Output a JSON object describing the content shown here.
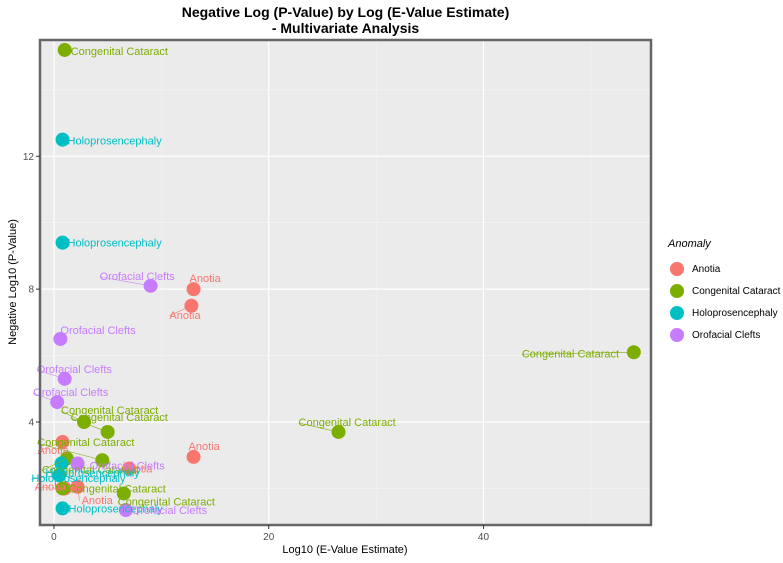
{
  "chart_data": {
    "type": "scatter",
    "title_lines": [
      "Negative Log (P-Value) by Log (E-Value Estimate)",
      "- Multivariate Analysis"
    ],
    "xlabel": "Log10 (E-Value Estimate)",
    "ylabel": "Negative Log10 (P-Value)",
    "xlim": [
      -1.3,
      55.6
    ],
    "ylim": [
      0.9,
      15.5
    ],
    "x_ticks": [
      0,
      20,
      40
    ],
    "y_ticks": [
      4,
      8,
      12
    ],
    "grid": true,
    "legend": {
      "title": "Anomaly",
      "position": "right",
      "entries": [
        "Anotia",
        "Congenital Cataract",
        "Holoprosencephaly",
        "Orofacial Clefts"
      ]
    },
    "series": [
      {
        "name": "Anotia",
        "color": "#F8766D",
        "points": [
          {
            "x": 13.0,
            "y": 8.0,
            "label": "Anotia"
          },
          {
            "x": 12.8,
            "y": 7.5,
            "label": "Anotia"
          },
          {
            "x": 0.8,
            "y": 3.4,
            "label": "Anotia"
          },
          {
            "x": 13.0,
            "y": 2.95,
            "label": "Anotia"
          },
          {
            "x": 7.0,
            "y": 2.6,
            "label": "Anotia"
          },
          {
            "x": 2.2,
            "y": 2.05,
            "label": "Anotia"
          },
          {
            "x": 1.0,
            "y": 2.0,
            "label": "Anotia"
          }
        ]
      },
      {
        "name": "Congenital Cataract",
        "color": "#7CAE00",
        "points": [
          {
            "x": 1.0,
            "y": 15.2,
            "label": "Congenital Cataract"
          },
          {
            "x": 54.0,
            "y": 6.1,
            "label": "Congenital Cataract"
          },
          {
            "x": 26.5,
            "y": 3.7,
            "label": "Congenital Cataract"
          },
          {
            "x": 2.8,
            "y": 4.0,
            "label": "Congenital Cataract"
          },
          {
            "x": 5.0,
            "y": 3.7,
            "label": "Congenital Cataract"
          },
          {
            "x": 1.2,
            "y": 2.9,
            "label": "Congenital Cataract"
          },
          {
            "x": 4.5,
            "y": 2.85,
            "label": "Congenital Cataract"
          },
          {
            "x": 6.5,
            "y": 1.85,
            "label": "Congenital Cataract"
          },
          {
            "x": 0.8,
            "y": 2.0,
            "label": "Congenital Cataract"
          }
        ]
      },
      {
        "name": "Holoprosencephaly",
        "color": "#00BFC4",
        "points": [
          {
            "x": 0.8,
            "y": 12.5,
            "label": "Holoprosencephaly"
          },
          {
            "x": 0.8,
            "y": 9.4,
            "label": "Holoprosencephaly"
          },
          {
            "x": 0.7,
            "y": 2.75,
            "label": "Holoprosencephaly"
          },
          {
            "x": 0.5,
            "y": 2.4,
            "label": "Holoprosencephaly"
          },
          {
            "x": 0.8,
            "y": 1.4,
            "label": "Holoprosencephaly"
          }
        ]
      },
      {
        "name": "Orofacial Clefts",
        "color": "#C77CFF",
        "points": [
          {
            "x": 9.0,
            "y": 8.1,
            "label": "Orofacial Clefts"
          },
          {
            "x": 0.6,
            "y": 6.5,
            "label": "Orofacial Clefts"
          },
          {
            "x": 1.0,
            "y": 5.3,
            "label": "Orofacial Clefts"
          },
          {
            "x": 0.3,
            "y": 4.6,
            "label": "Orofacial Clefts"
          },
          {
            "x": 2.2,
            "y": 2.75,
            "label": "Orofacial Clefts"
          },
          {
            "x": 6.7,
            "y": 1.35,
            "label": "Orofacial Clefts"
          }
        ]
      }
    ]
  }
}
